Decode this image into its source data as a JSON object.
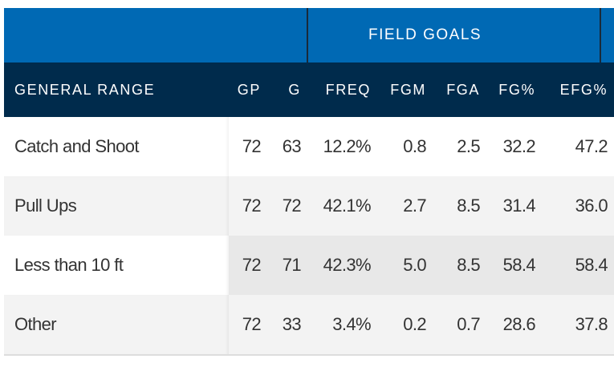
{
  "group_header": "FIELD GOALS",
  "columns": [
    "GENERAL RANGE",
    "GP",
    "G",
    "FREQ",
    "FGM",
    "FGA",
    "FG%",
    "EFG%"
  ],
  "rows": [
    [
      "Catch and Shoot",
      "72",
      "63",
      "12.2%",
      "0.8",
      "2.5",
      "32.2",
      "47.2"
    ],
    [
      "Pull Ups",
      "72",
      "72",
      "42.1%",
      "2.7",
      "8.5",
      "31.4",
      "36.0"
    ],
    [
      "Less than 10 ft",
      "72",
      "71",
      "42.3%",
      "5.0",
      "8.5",
      "58.4",
      "58.4"
    ],
    [
      "Other",
      "72",
      "33",
      "3.4%",
      "0.2",
      "0.7",
      "28.6",
      "37.8"
    ]
  ],
  "colors": {
    "group_header": "#0069b4",
    "column_header": "#002b4c"
  }
}
